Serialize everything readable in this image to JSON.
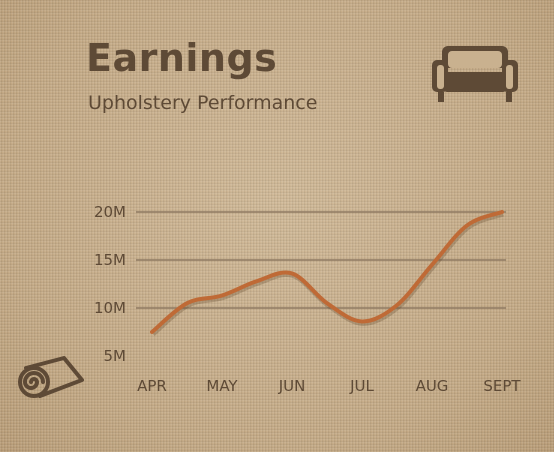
{
  "header": {
    "title": "Earnings",
    "subtitle": "Upholstery Performance"
  },
  "icons": {
    "top_right": "sofa-icon",
    "bottom_left": "rolled-rug-icon"
  },
  "colors": {
    "text": "#5e4a36",
    "grid": "#8f7a62",
    "line": "#bf6a36",
    "background": "#c9b18f"
  },
  "chart_data": {
    "type": "line",
    "title": "Earnings",
    "subtitle": "Upholstery Performance",
    "xlabel": "",
    "ylabel": "",
    "categories": [
      "APR",
      "MAY",
      "JUN",
      "JUL",
      "AUG",
      "SEPT"
    ],
    "ytick_labels": [
      "20M",
      "15M",
      "10M",
      "5M"
    ],
    "ytick_values": [
      20,
      15,
      10,
      5
    ],
    "ylim": [
      5,
      20
    ],
    "grid": true,
    "series": [
      {
        "points": [
          {
            "x": "APR",
            "y": 7.5
          },
          {
            "x": "APR-MAY",
            "y": 10.5
          },
          {
            "x": "MAY",
            "y": 11.3
          },
          {
            "x": "MAY-JUN",
            "y": 12.8
          },
          {
            "x": "JUN",
            "y": 13.6
          },
          {
            "x": "JUN-JUL",
            "y": 10.5
          },
          {
            "x": "JUL",
            "y": 8.6
          },
          {
            "x": "JUL-AUG",
            "y": 10.3
          },
          {
            "x": "AUG",
            "y": 14.5
          },
          {
            "x": "AUG-SEPT",
            "y": 18.6
          },
          {
            "x": "SEPT",
            "y": 20.0
          }
        ]
      }
    ]
  }
}
